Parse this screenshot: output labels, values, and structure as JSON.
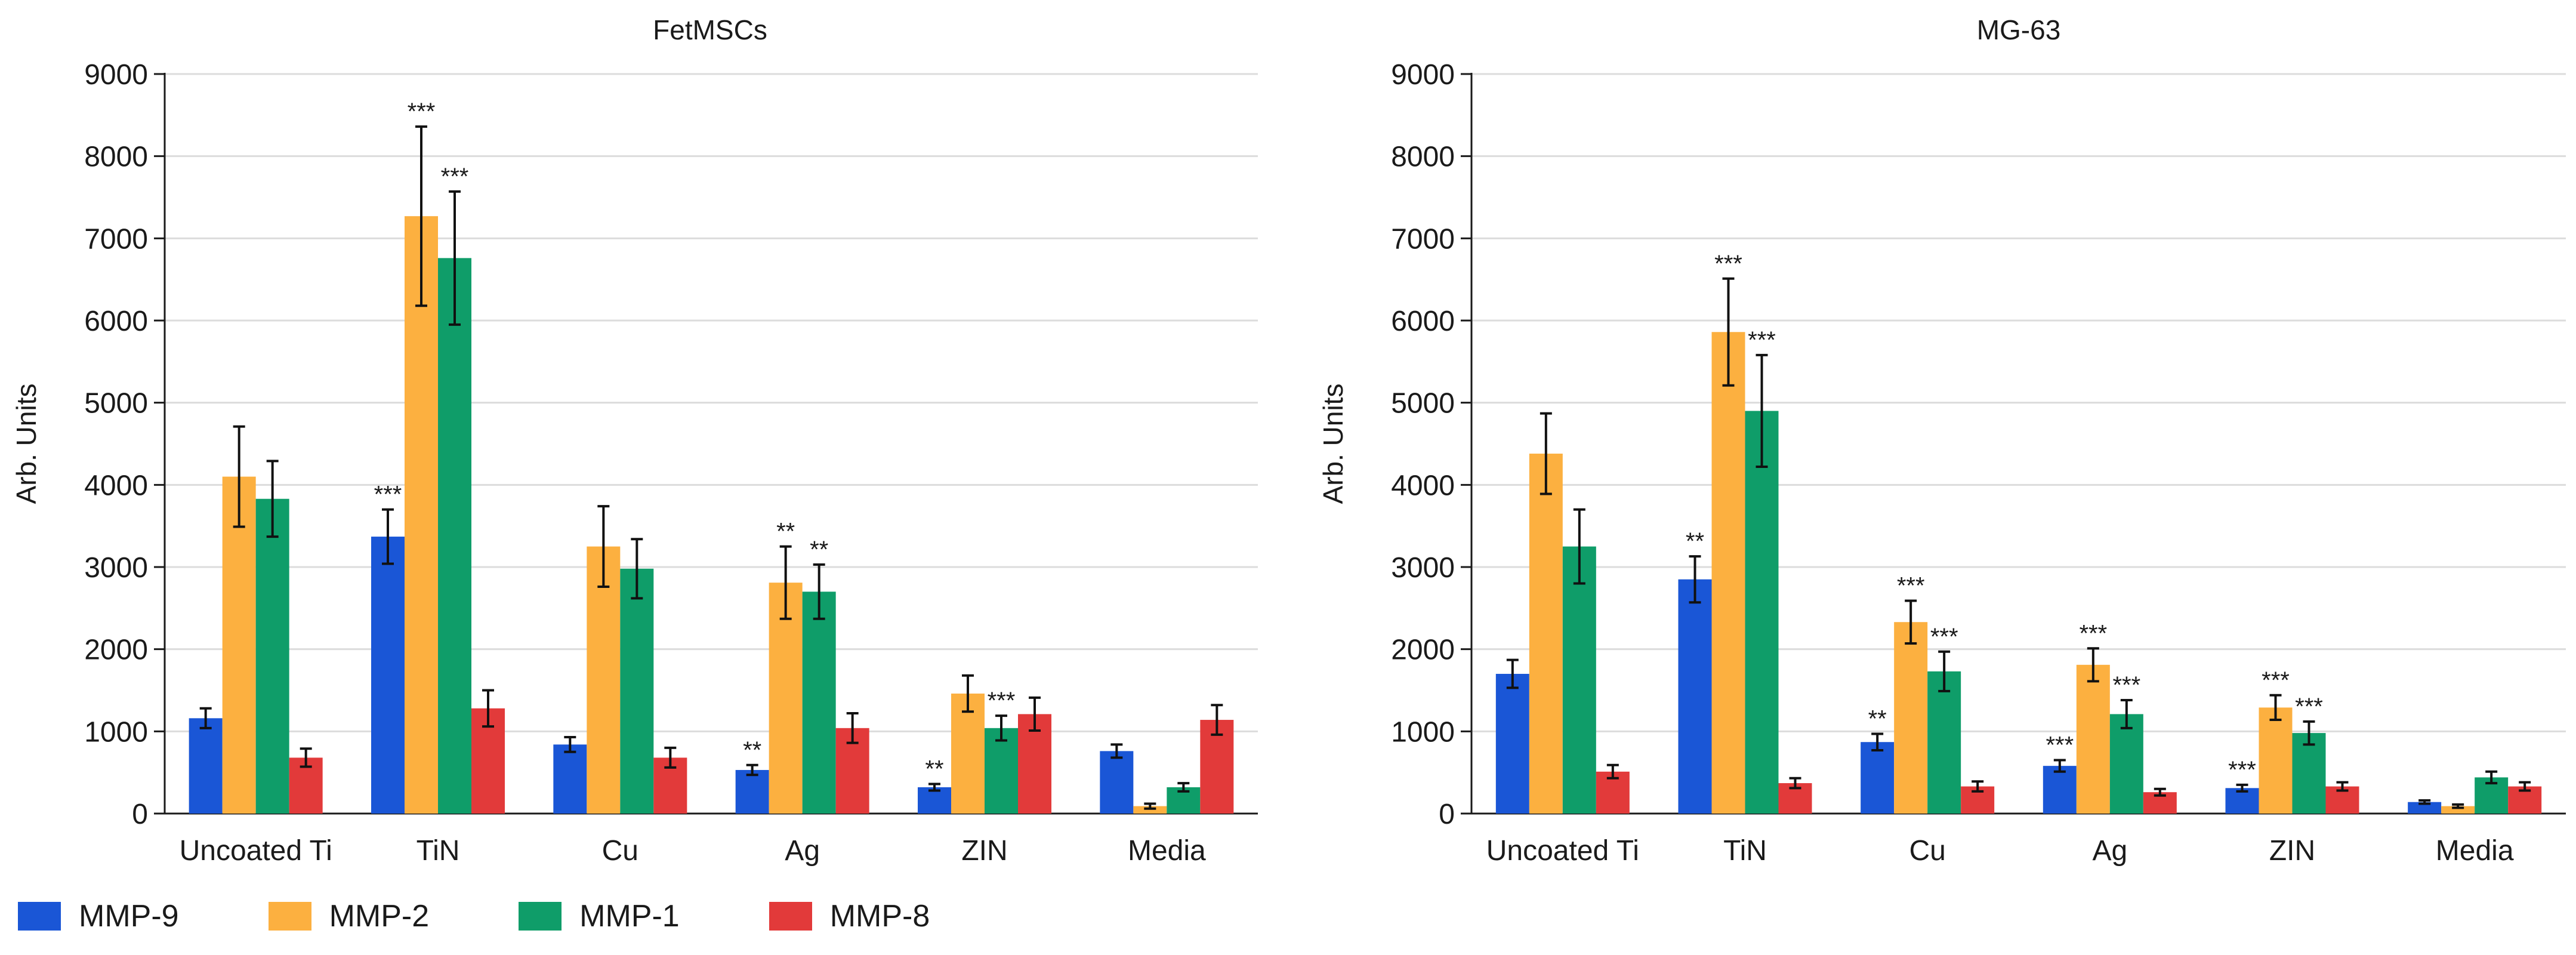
{
  "chart_data": [
    {
      "type": "bar",
      "title": "FetMSCs",
      "xlabel": "",
      "ylabel": "Arb. Units",
      "ylim": [
        0,
        9000
      ],
      "yticks": [
        0,
        1000,
        2000,
        3000,
        4000,
        5000,
        6000,
        7000,
        8000,
        9000
      ],
      "grid": true,
      "categories": [
        "Uncoated Ti",
        "TiN",
        "Cu",
        "Ag",
        "ZIN",
        "Media"
      ],
      "series": [
        {
          "name": "MMP-9",
          "values": [
            1160,
            3370,
            840,
            530,
            320,
            760
          ],
          "errors": [
            120,
            330,
            90,
            60,
            40,
            80
          ],
          "annotations": [
            "",
            "***",
            "",
            "**",
            "**",
            ""
          ]
        },
        {
          "name": "MMP-2",
          "values": [
            4100,
            7270,
            3250,
            2810,
            1460,
            90
          ],
          "errors": [
            610,
            1090,
            490,
            440,
            220,
            30
          ],
          "annotations": [
            "",
            "***",
            "",
            "**",
            "",
            ""
          ]
        },
        {
          "name": "MMP-1",
          "values": [
            3830,
            6760,
            2980,
            2700,
            1040,
            320
          ],
          "errors": [
            460,
            810,
            360,
            330,
            150,
            50
          ],
          "annotations": [
            "",
            "***",
            "",
            "**",
            "***",
            ""
          ]
        },
        {
          "name": "MMP-8",
          "values": [
            680,
            1280,
            680,
            1040,
            1210,
            1140
          ],
          "errors": [
            110,
            220,
            120,
            180,
            200,
            180
          ],
          "annotations": [
            "",
            "",
            "",
            "",
            "",
            ""
          ]
        }
      ]
    },
    {
      "type": "bar",
      "title": "MG-63",
      "xlabel": "",
      "ylabel": "Arb. Units",
      "ylim": [
        0,
        9000
      ],
      "yticks": [
        0,
        1000,
        2000,
        3000,
        4000,
        5000,
        6000,
        7000,
        8000,
        9000
      ],
      "grid": true,
      "categories": [
        "Uncoated Ti",
        "TiN",
        "Cu",
        "Ag",
        "ZIN",
        "Media"
      ],
      "series": [
        {
          "name": "MMP-9",
          "values": [
            1700,
            2850,
            870,
            580,
            310,
            140
          ],
          "errors": [
            170,
            280,
            100,
            70,
            40,
            20
          ],
          "annotations": [
            "",
            "**",
            "**",
            "***",
            "***",
            ""
          ]
        },
        {
          "name": "MMP-2",
          "values": [
            4380,
            5860,
            2330,
            1810,
            1290,
            90
          ],
          "errors": [
            490,
            650,
            260,
            200,
            150,
            20
          ],
          "annotations": [
            "",
            "***",
            "***",
            "***",
            "***",
            ""
          ]
        },
        {
          "name": "MMP-1",
          "values": [
            3250,
            4900,
            1730,
            1210,
            980,
            440
          ],
          "errors": [
            450,
            680,
            240,
            170,
            140,
            70
          ],
          "annotations": [
            "",
            "***",
            "***",
            "***",
            "***",
            ""
          ]
        },
        {
          "name": "MMP-8",
          "values": [
            510,
            370,
            330,
            260,
            330,
            330
          ],
          "errors": [
            80,
            60,
            60,
            40,
            50,
            50
          ],
          "annotations": [
            "",
            "",
            "",
            "",
            "",
            ""
          ]
        }
      ]
    }
  ],
  "legend": [
    {
      "label": "MMP-9",
      "color": "#1a56d6"
    },
    {
      "label": "MMP-2",
      "color": "#fcb040"
    },
    {
      "label": "MMP-1",
      "color": "#0f9d69"
    },
    {
      "label": "MMP-8",
      "color": "#e23a3a"
    }
  ]
}
